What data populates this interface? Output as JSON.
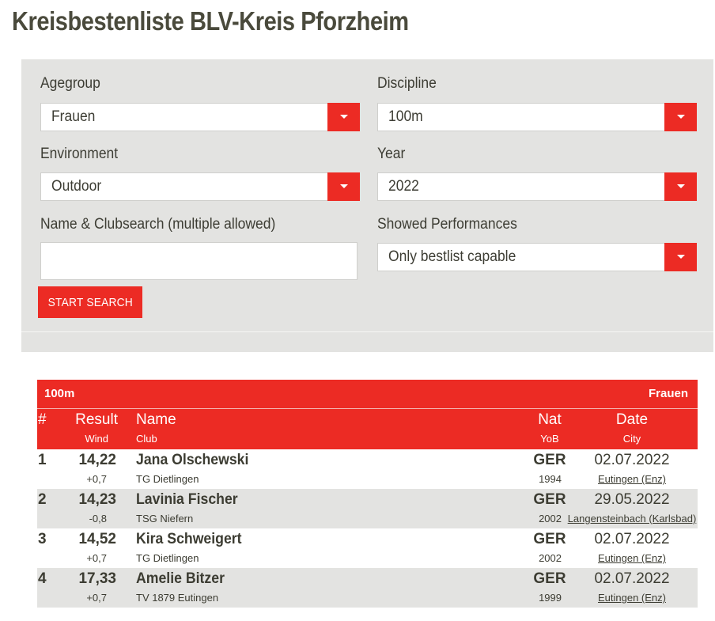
{
  "page": {
    "title": "Kreisbestenliste BLV-Kreis Pforzheim"
  },
  "filters": {
    "agegroup": {
      "label": "Agegroup",
      "value": "Frauen"
    },
    "discipline": {
      "label": "Discipline",
      "value": "100m"
    },
    "environment": {
      "label": "Environment",
      "value": "Outdoor"
    },
    "year": {
      "label": "Year",
      "value": "2022"
    },
    "namesearch": {
      "label": "Name & Clubsearch (multiple allowed)",
      "value": ""
    },
    "performances": {
      "label": "Showed Performances",
      "value": "Only bestlist capable"
    },
    "start_label": "START SEARCH"
  },
  "results": {
    "discipline": "100m",
    "agegroup": "Frauen",
    "columns": {
      "rank": "#",
      "result": "Result",
      "wind": "Wind",
      "name": "Name",
      "club": "Club",
      "nat": "Nat",
      "yob": "YoB",
      "date": "Date",
      "city": "City"
    },
    "rows": [
      {
        "rank": "1",
        "result": "14,22",
        "wind": "+0,7",
        "name": "Jana Olschewski",
        "club": "TG Dietlingen",
        "nat": "GER",
        "yob": "1994",
        "date": "02.07.2022",
        "city": "Eutingen (Enz)"
      },
      {
        "rank": "2",
        "result": "14,23",
        "wind": "-0,8",
        "name": "Lavinia Fischer",
        "club": "TSG Niefern",
        "nat": "GER",
        "yob": "2002",
        "date": "29.05.2022",
        "city": "Langensteinbach (Karlsbad)"
      },
      {
        "rank": "3",
        "result": "14,52",
        "wind": "+0,7",
        "name": "Kira Schweigert",
        "club": "TG Dietlingen",
        "nat": "GER",
        "yob": "2002",
        "date": "02.07.2022",
        "city": "Eutingen (Enz)"
      },
      {
        "rank": "4",
        "result": "17,33",
        "wind": "+0,7",
        "name": "Amelie Bitzer",
        "club": "TV 1879 Eutingen",
        "nat": "GER",
        "yob": "1999",
        "date": "02.07.2022",
        "city": "Eutingen (Enz)"
      }
    ]
  },
  "colors": {
    "accent": "#ec2b24",
    "panel": "#e3e3e1",
    "text": "#3c3c32"
  }
}
